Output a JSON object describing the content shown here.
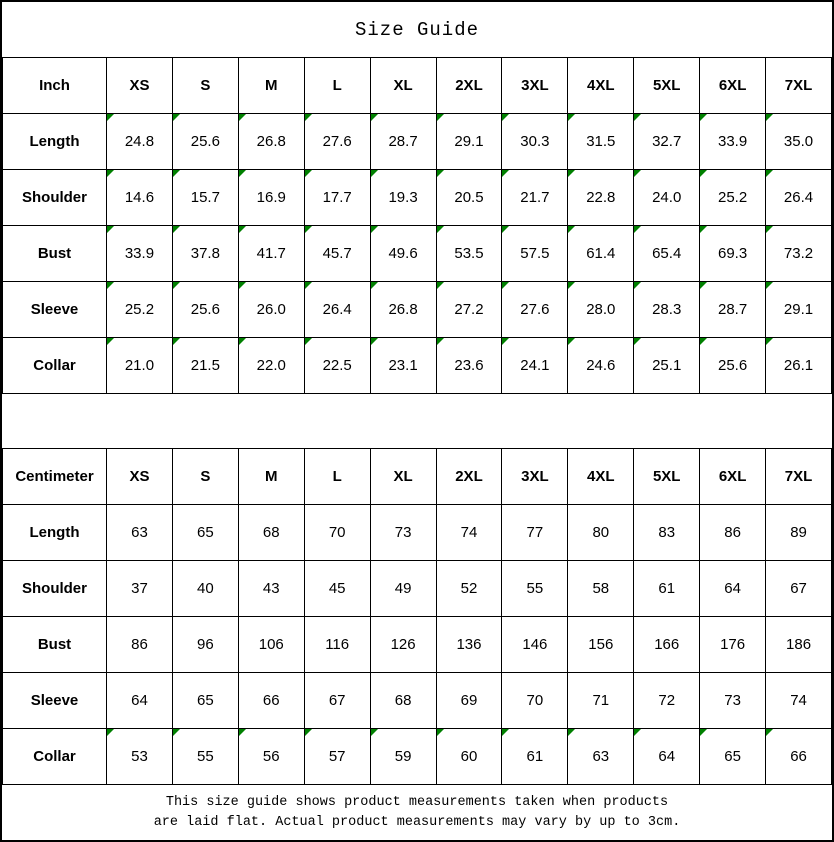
{
  "title": "Size Guide",
  "marker_color": "#008000",
  "border_color": "#000000",
  "sizes": [
    "XS",
    "S",
    "M",
    "L",
    "XL",
    "2XL",
    "3XL",
    "4XL",
    "5XL",
    "6XL",
    "7XL"
  ],
  "tables": [
    {
      "key": "inch",
      "unit_label": "Inch",
      "rows": [
        {
          "label": "Length",
          "marked": true,
          "values": [
            "24.8",
            "25.6",
            "26.8",
            "27.6",
            "28.7",
            "29.1",
            "30.3",
            "31.5",
            "32.7",
            "33.9",
            "35.0"
          ]
        },
        {
          "label": "Shoulder",
          "marked": true,
          "values": [
            "14.6",
            "15.7",
            "16.9",
            "17.7",
            "19.3",
            "20.5",
            "21.7",
            "22.8",
            "24.0",
            "25.2",
            "26.4"
          ]
        },
        {
          "label": "Bust",
          "marked": true,
          "values": [
            "33.9",
            "37.8",
            "41.7",
            "45.7",
            "49.6",
            "53.5",
            "57.5",
            "61.4",
            "65.4",
            "69.3",
            "73.2"
          ]
        },
        {
          "label": "Sleeve",
          "marked": true,
          "values": [
            "25.2",
            "25.6",
            "26.0",
            "26.4",
            "26.8",
            "27.2",
            "27.6",
            "28.0",
            "28.3",
            "28.7",
            "29.1"
          ]
        },
        {
          "label": "Collar",
          "marked": true,
          "values": [
            "21.0",
            "21.5",
            "22.0",
            "22.5",
            "23.1",
            "23.6",
            "24.1",
            "24.6",
            "25.1",
            "25.6",
            "26.1"
          ]
        }
      ]
    },
    {
      "key": "cm",
      "unit_label": "Centimeter",
      "rows": [
        {
          "label": "Length",
          "marked": false,
          "values": [
            "63",
            "65",
            "68",
            "70",
            "73",
            "74",
            "77",
            "80",
            "83",
            "86",
            "89"
          ]
        },
        {
          "label": "Shoulder",
          "marked": false,
          "values": [
            "37",
            "40",
            "43",
            "45",
            "49",
            "52",
            "55",
            "58",
            "61",
            "64",
            "67"
          ]
        },
        {
          "label": "Bust",
          "marked": false,
          "values": [
            "86",
            "96",
            "106",
            "116",
            "126",
            "136",
            "146",
            "156",
            "166",
            "176",
            "186"
          ]
        },
        {
          "label": "Sleeve",
          "marked": false,
          "values": [
            "64",
            "65",
            "66",
            "67",
            "68",
            "69",
            "70",
            "71",
            "72",
            "73",
            "74"
          ]
        },
        {
          "label": "Collar",
          "marked": true,
          "values": [
            "53",
            "55",
            "56",
            "57",
            "59",
            "60",
            "61",
            "63",
            "64",
            "65",
            "66"
          ]
        }
      ]
    }
  ],
  "note": {
    "line1": "This size guide shows product measurements taken when products",
    "line2": "are laid flat. Actual product measurements may vary by up to 3cm."
  }
}
